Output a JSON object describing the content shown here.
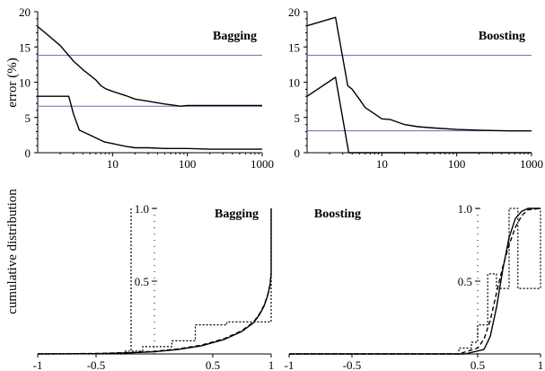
{
  "figure": {
    "ylabel_top": "error (%)",
    "ylabel_bottom": "cumulative distribution"
  },
  "chart_data": [
    {
      "id": "p1",
      "type": "line",
      "title": "Bagging",
      "xscale": "log",
      "xlim": [
        1,
        1000
      ],
      "ylim": [
        0,
        20
      ],
      "xticks": [
        10,
        100,
        1000
      ],
      "xticklabels": [
        "10",
        "100",
        "1000"
      ],
      "yticks": [
        0,
        5,
        10,
        15,
        20
      ],
      "yticklabels": [
        "0",
        "5",
        "10",
        "15",
        "20"
      ],
      "hlines": [
        {
          "y": 13.8,
          "color": "#6a6ab8"
        },
        {
          "y": 6.6,
          "color": "#6a6ab8"
        }
      ],
      "series": [
        {
          "color": "#000000",
          "dash": "",
          "x": [
            1,
            2,
            3,
            4,
            6,
            7,
            8,
            10,
            15,
            20,
            30,
            50,
            70,
            80,
            100,
            200,
            500,
            1000
          ],
          "y": [
            17.9,
            15.2,
            13.0,
            11.8,
            10.3,
            9.5,
            9.1,
            8.7,
            8.1,
            7.6,
            7.3,
            6.9,
            6.7,
            6.6,
            6.7,
            6.7,
            6.7,
            6.7
          ]
        },
        {
          "color": "#000000",
          "dash": "",
          "x": [
            1,
            2,
            2.6,
            3,
            3.6,
            5,
            6,
            7.5,
            8,
            10,
            15,
            20,
            30,
            50,
            100,
            200,
            500,
            1000
          ],
          "y": [
            8.0,
            8.0,
            8.0,
            5.5,
            3.2,
            2.5,
            2.1,
            1.6,
            1.5,
            1.3,
            0.9,
            0.7,
            0.7,
            0.6,
            0.6,
            0.5,
            0.5,
            0.5
          ]
        }
      ]
    },
    {
      "id": "p2",
      "type": "line",
      "title": "Boosting",
      "xscale": "log",
      "xlim": [
        1,
        1000
      ],
      "ylim": [
        0,
        20
      ],
      "xticks": [
        10,
        100,
        1000
      ],
      "xticklabels": [
        "10",
        "100",
        "1000"
      ],
      "yticks": [
        0,
        5,
        10,
        15,
        20
      ],
      "yticklabels": [
        "0",
        "5",
        "10",
        "15",
        "20"
      ],
      "hlines": [
        {
          "y": 13.8,
          "color": "#6a6ab8"
        },
        {
          "y": 3.1,
          "color": "#6a6ab8"
        }
      ],
      "series": [
        {
          "color": "#000000",
          "dash": "",
          "x": [
            1,
            2.4,
            3.5,
            4,
            5,
            6,
            8,
            10,
            13,
            20,
            30,
            50,
            100,
            200,
            500,
            1000
          ],
          "y": [
            18.0,
            19.2,
            9.5,
            9.0,
            7.6,
            6.4,
            5.5,
            4.8,
            4.7,
            4.0,
            3.7,
            3.5,
            3.3,
            3.2,
            3.1,
            3.1
          ]
        },
        {
          "color": "#000000",
          "dash": "",
          "x": [
            1,
            2.4,
            3.6,
            10,
            100,
            1000
          ],
          "y": [
            8.0,
            10.7,
            0.0,
            0.0,
            0.0,
            0.0
          ]
        }
      ]
    },
    {
      "id": "p3",
      "type": "line",
      "title": "Bagging",
      "xlim": [
        -1,
        1
      ],
      "ylim": [
        0,
        1
      ],
      "xticks": [
        -1,
        -0.5,
        0.5,
        1
      ],
      "xticklabels": [
        "-1",
        "-0.5",
        "0.5",
        "1"
      ],
      "yticks": [
        0.5,
        1.0
      ],
      "yticklabels": [
        "0.5",
        "1.0"
      ],
      "series": [
        {
          "color": "#000000",
          "dash": "",
          "x": [
            -1,
            -0.5,
            -0.2,
            0,
            0.2,
            0.4,
            0.6,
            0.75,
            0.85,
            0.9,
            0.94,
            0.97,
            0.99,
            1.0,
            1.0
          ],
          "y": [
            0,
            0.002,
            0.008,
            0.015,
            0.03,
            0.055,
            0.1,
            0.155,
            0.215,
            0.27,
            0.33,
            0.4,
            0.47,
            0.55,
            1.0
          ]
        },
        {
          "color": "#000000",
          "dash": "5,3",
          "x": [
            -1,
            -0.5,
            -0.2,
            0,
            0.2,
            0.4,
            0.6,
            0.75,
            0.85,
            0.9,
            0.94,
            0.97,
            0.99,
            1.0
          ],
          "y": [
            0,
            0.003,
            0.01,
            0.018,
            0.034,
            0.06,
            0.105,
            0.16,
            0.22,
            0.275,
            0.335,
            0.405,
            0.475,
            0.55
          ]
        },
        {
          "color": "#000000",
          "dash": "2,2",
          "x": [
            -1,
            -0.25,
            -0.25,
            -0.1,
            -0.1,
            0.15,
            0.15,
            0.35,
            0.35,
            0.62,
            0.62,
            1.0,
            1.0
          ],
          "y": [
            0,
            0,
            0.02,
            0.02,
            0.05,
            0.05,
            0.09,
            0.09,
            0.2,
            0.2,
            0.22,
            0.22,
            1.0
          ]
        },
        {
          "color": "#000000",
          "dash": "2,2",
          "x": [
            -0.2,
            -0.2
          ],
          "y": [
            0,
            1.0
          ]
        }
      ]
    },
    {
      "id": "p4",
      "type": "line",
      "title": "Boosting",
      "xlim": [
        -1,
        1
      ],
      "ylim": [
        0,
        1
      ],
      "xticks": [
        -1,
        -0.5,
        0.5,
        1
      ],
      "xticklabels": [
        "-1",
        "-0.5",
        "0.5",
        "1"
      ],
      "yticks": [
        0.5,
        1.0
      ],
      "yticklabels": [
        "0.5",
        "1.0"
      ],
      "series": [
        {
          "color": "#000000",
          "dash": "",
          "x": [
            -1,
            0.4,
            0.55,
            0.6,
            0.65,
            0.7,
            0.75,
            0.8,
            0.85,
            0.9,
            1.0
          ],
          "y": [
            0,
            0,
            0.03,
            0.12,
            0.32,
            0.58,
            0.8,
            0.93,
            0.98,
            1.0,
            1.0
          ]
        },
        {
          "color": "#000000",
          "dash": "5,3",
          "x": [
            -1,
            0.35,
            0.5,
            0.55,
            0.6,
            0.65,
            0.7,
            0.75,
            0.8,
            0.85,
            0.9,
            1.0
          ],
          "y": [
            0,
            0,
            0.04,
            0.1,
            0.23,
            0.42,
            0.6,
            0.75,
            0.87,
            0.95,
            0.99,
            1.0
          ]
        },
        {
          "color": "#000000",
          "dash": "2,2",
          "x": [
            -1,
            0.35,
            0.35,
            0.45,
            0.45,
            0.5,
            0.5,
            0.58,
            0.58,
            0.65,
            0.65,
            0.75,
            0.75,
            0.82,
            0.82,
            1.0,
            1.0
          ],
          "y": [
            0,
            0,
            0.04,
            0.04,
            0.08,
            0.08,
            0.2,
            0.2,
            0.55,
            0.55,
            0.45,
            0.45,
            1.0,
            1.0,
            0.45,
            0.45,
            1.0
          ]
        }
      ]
    }
  ]
}
